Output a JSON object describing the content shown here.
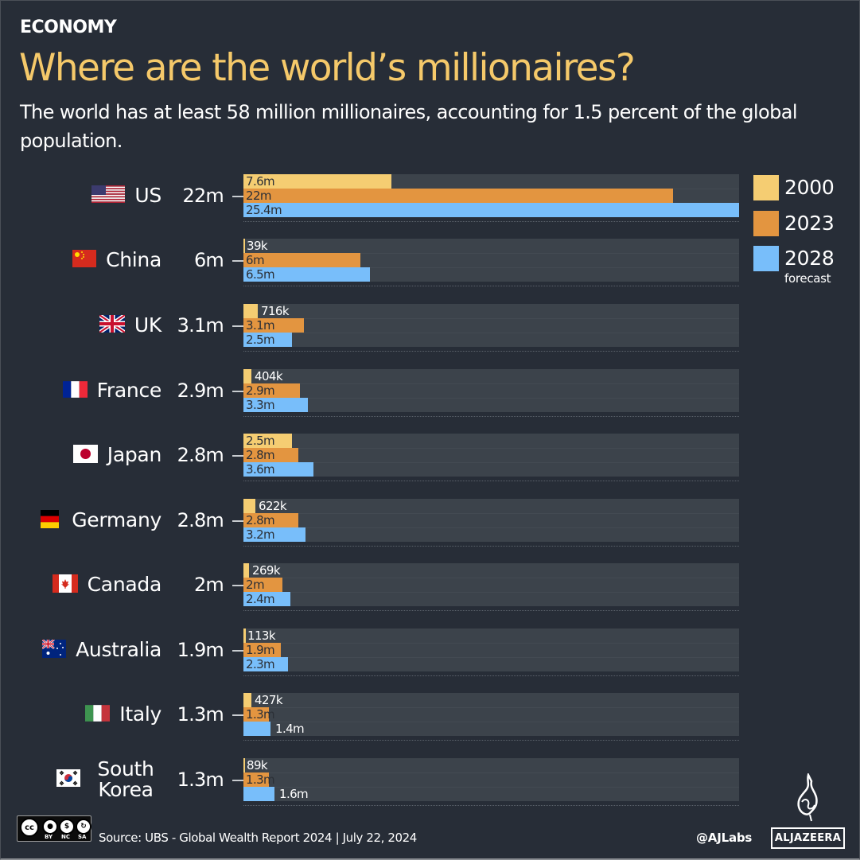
{
  "header": {
    "kicker": "ECONOMY",
    "title": "Where are the world’s millionaires?",
    "subtitle": "The world has at least 58 million millionaires, accounting for 1.5 percent of the global population."
  },
  "legend": [
    {
      "label": "2000",
      "sub": "",
      "color": "#f5cd72"
    },
    {
      "label": "2023",
      "sub": "",
      "color": "#e39540"
    },
    {
      "label": "2028",
      "sub": "forecast",
      "color": "#78befa"
    }
  ],
  "footer": {
    "license": {
      "icons": [
        "cc",
        "by",
        "nc",
        "sa"
      ],
      "labels": [
        "BY",
        "NC",
        "SA"
      ]
    },
    "source": "Source: UBS - Global Wealth Report 2024  |  July 22, 2024",
    "handle": "@AJLabs",
    "brand": "ALJAZEERA"
  },
  "chart_data": {
    "type": "bar",
    "orientation": "horizontal",
    "title": "Where are the world’s millionaires?",
    "subtitle": "The world has at least 58 million millionaires, accounting for 1.5 percent of the global population.",
    "xlabel": "",
    "ylabel": "",
    "unit": "millions of millionaires",
    "xlim": [
      0,
      25.4
    ],
    "grid": false,
    "legend_position": "right-top",
    "categories": [
      "US",
      "China",
      "UK",
      "France",
      "Japan",
      "Germany",
      "Canada",
      "Australia",
      "Italy",
      "South Korea"
    ],
    "totals_2023": [
      "22m",
      "6m",
      "3.1m",
      "2.9m",
      "2.8m",
      "2.8m",
      "2m",
      "1.9m",
      "1.3m",
      "1.3m"
    ],
    "flags": [
      "us-flag-icon",
      "china-flag-icon",
      "uk-flag-icon",
      "france-flag-icon",
      "japan-flag-icon",
      "germany-flag-icon",
      "canada-flag-icon",
      "australia-flag-icon",
      "italy-flag-icon",
      "south-korea-flag-icon"
    ],
    "series": [
      {
        "name": "2000",
        "color": "#f5cd72",
        "values": [
          7.6,
          0.039,
          0.716,
          0.404,
          2.5,
          0.622,
          0.269,
          0.113,
          0.427,
          0.089
        ],
        "labels": [
          "7.6m",
          "39k",
          "716k",
          "404k",
          "2.5m",
          "622k",
          "269k",
          "113k",
          "427k",
          "89k"
        ]
      },
      {
        "name": "2023",
        "color": "#e39540",
        "values": [
          22,
          6,
          3.1,
          2.9,
          2.8,
          2.8,
          2,
          1.9,
          1.3,
          1.3
        ],
        "labels": [
          "22m",
          "6m",
          "3.1m",
          "2.9m",
          "2.8m",
          "2.8m",
          "2m",
          "1.9m",
          "1.3m",
          "1.3m"
        ]
      },
      {
        "name": "2028 forecast",
        "color": "#78befa",
        "values": [
          25.4,
          6.5,
          2.5,
          3.3,
          3.6,
          3.2,
          2.4,
          2.3,
          1.4,
          1.6
        ],
        "labels": [
          "25.4m",
          "6.5m",
          "2.5m",
          "3.3m",
          "3.6m",
          "3.2m",
          "2.4m",
          "2.3m",
          "1.4m",
          "1.6m"
        ]
      }
    ],
    "source": "UBS - Global Wealth Report 2024",
    "date": "July 22, 2024"
  }
}
